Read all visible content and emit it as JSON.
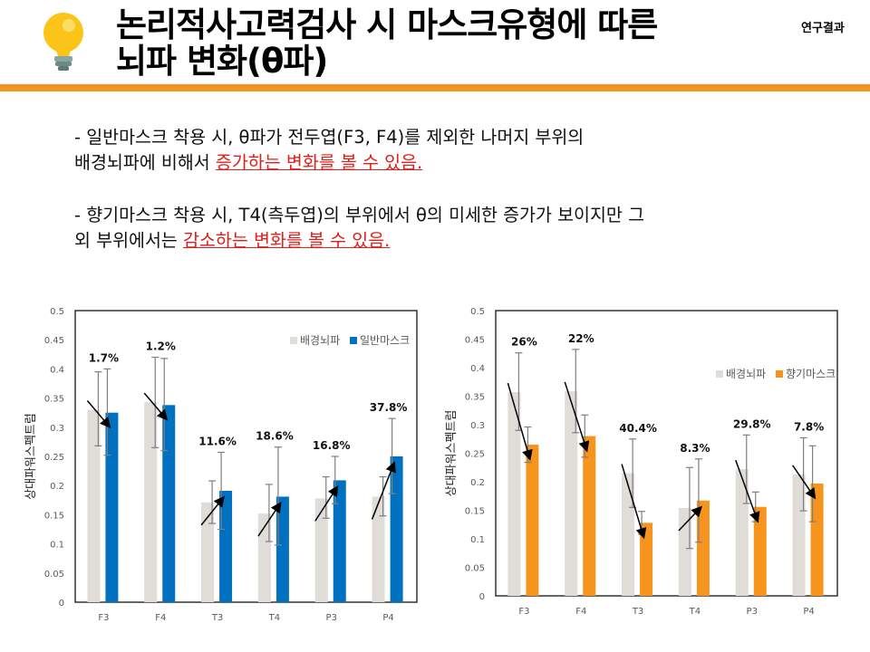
{
  "header": {
    "title_line1": "논리적사고력검사 시 마스크유형에 따른",
    "title_line2": "뇌파 변화(θ파)",
    "section": "연구결과",
    "accent": "#f39321"
  },
  "body": {
    "p1_text": "- 일반마스크 착용 시, θ파가 전두엽(F3, F4)를 제외한 나머지 부위의",
    "p1_text2": "배경뇌파에 비해서 ",
    "p1_highlight": "증가하는 변화를 볼 수 있음.",
    "p2_text": "- 향기마스크 착용 시, T4(측두엽)의 부위에서 θ의 미세한 증가가 보이지만 그",
    "p2_text2": "외 부위에서는 ",
    "p2_highlight": "감소하는 변화를 볼 수 있음.",
    "highlight_color": "#e0201b"
  },
  "chart_data": [
    {
      "type": "bar",
      "categories": [
        "F3",
        "F4",
        "T3",
        "T4",
        "P3",
        "P4"
      ],
      "ylabel": "상대파워스펙트럼",
      "ylim": [
        0,
        0.5
      ],
      "yticks": [
        "0",
        "0.05",
        "0.1",
        "0.15",
        "0.2",
        "0.25",
        "0.3",
        "0.35",
        "0.4",
        "0.45",
        "0.5"
      ],
      "legend": "top-right",
      "grid": false,
      "series": [
        {
          "name": "배경뇌파",
          "color": "#e0dcd8",
          "values": [
            0.33,
            0.343,
            0.171,
            0.152,
            0.178,
            0.181
          ],
          "err_high": [
            0.395,
            0.42,
            0.208,
            0.202,
            0.215,
            0.215
          ],
          "err_low": [
            0.268,
            0.265,
            0.135,
            0.104,
            0.144,
            0.148
          ]
        },
        {
          "name": "일반마스크",
          "color": "#0070c0",
          "values": [
            0.325,
            0.338,
            0.191,
            0.181,
            0.209,
            0.25
          ],
          "err_high": [
            0.4,
            0.418,
            0.257,
            0.266,
            0.25,
            0.315
          ],
          "err_low": [
            0.252,
            0.26,
            0.125,
            0.098,
            0.169,
            0.186
          ]
        }
      ],
      "annotations": [
        "1.7%",
        "1.2%",
        "11.6%",
        "18.6%",
        "16.8%",
        "37.8%"
      ]
    },
    {
      "type": "bar",
      "categories": [
        "F3",
        "F4",
        "T3",
        "T4",
        "P3",
        "P4"
      ],
      "ylabel": "상대파워스펙트럼",
      "ylim": [
        0,
        0.5
      ],
      "yticks": [
        "0",
        "0.05",
        "0.1",
        "0.15",
        "0.2",
        "0.25",
        "0.3",
        "0.35",
        "0.4",
        "0.45",
        "0.5"
      ],
      "legend": "right",
      "grid": false,
      "series": [
        {
          "name": "배경뇌파",
          "color": "#e0dcd8",
          "values": [
            0.357,
            0.359,
            0.215,
            0.154,
            0.222,
            0.213
          ],
          "err_high": [
            0.426,
            0.432,
            0.275,
            0.225,
            0.282,
            0.277
          ],
          "err_low": [
            0.29,
            0.286,
            0.155,
            0.083,
            0.162,
            0.149
          ]
        },
        {
          "name": "향기마스크",
          "color": "#f7941d",
          "values": [
            0.265,
            0.28,
            0.128,
            0.167,
            0.156,
            0.197
          ],
          "err_high": [
            0.296,
            0.317,
            0.148,
            0.24,
            0.182,
            0.263
          ],
          "err_low": [
            0.234,
            0.243,
            0.108,
            0.094,
            0.13,
            0.13
          ]
        }
      ],
      "annotations": [
        "26%",
        "22%",
        "40.4%",
        "8.3%",
        "29.8%",
        "7.8%"
      ]
    }
  ]
}
